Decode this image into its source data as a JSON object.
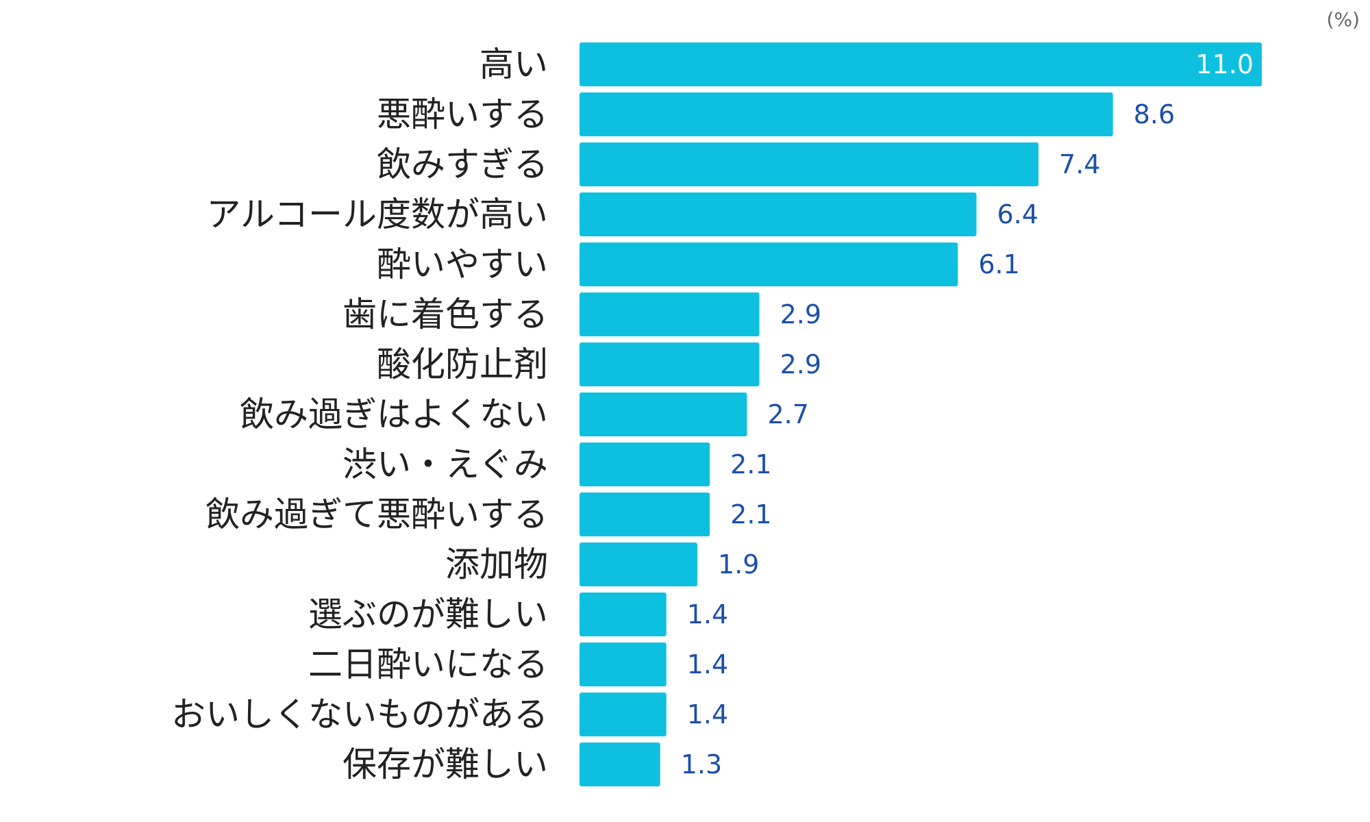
{
  "chart_data": {
    "type": "bar",
    "orientation": "horizontal",
    "unit_label": "(%)",
    "categories": [
      "高い",
      "悪酔いする",
      "飲みすぎる",
      "アルコール度数が高い",
      "酔いやすい",
      "歯に着色する",
      "酸化防止剤",
      "飲み過ぎはよくない",
      "渋い・えぐみ",
      "飲み過ぎて悪酔いする",
      "添加物",
      "選ぶのが難しい",
      "二日酔いになる",
      "おいしくないものがある",
      "保存が難しい"
    ],
    "values": [
      11.0,
      8.6,
      7.4,
      6.4,
      6.1,
      2.9,
      2.9,
      2.7,
      2.1,
      2.1,
      1.9,
      1.4,
      1.4,
      1.4,
      1.3
    ],
    "value_labels": [
      "11.0",
      "8.6",
      "7.4",
      "6.4",
      "6.1",
      "2.9",
      "2.9",
      "2.7",
      "2.1",
      "2.1",
      "1.9",
      "1.4",
      "1.4",
      "1.4",
      "1.3"
    ],
    "xlim": [
      0,
      11.0
    ],
    "grid": false,
    "legend": "none",
    "colors": {
      "bar": "#0dc0e0",
      "value_label": "#1a4faa",
      "value_label_inside": "#ffffff",
      "category_label": "#222222",
      "unit_label": "#666666"
    }
  }
}
